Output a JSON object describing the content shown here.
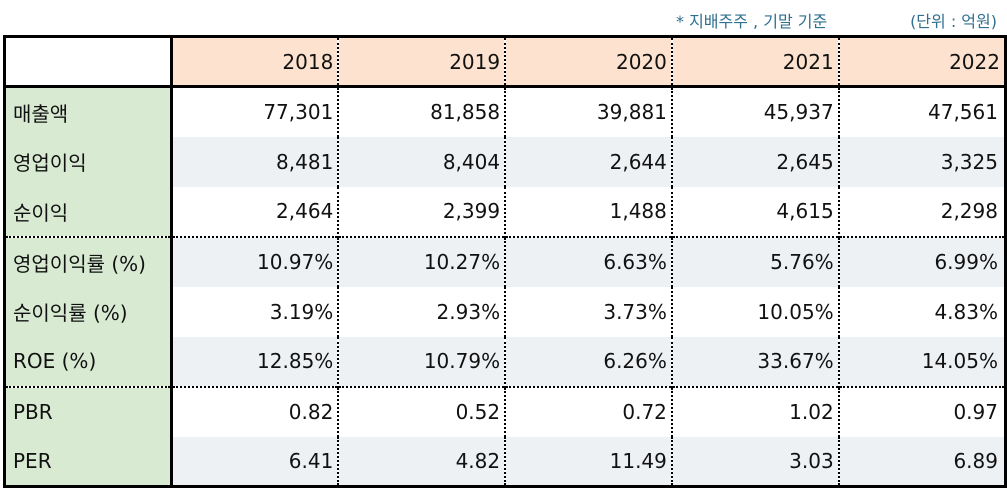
{
  "notes": {
    "basis": "* 지배주주 , 기말 기준",
    "unit": "(단위 : 억원)"
  },
  "table": {
    "years": [
      "2018",
      "2019",
      "2020",
      "2021",
      "2022"
    ],
    "rows": [
      {
        "label": "매출액",
        "values": [
          "77,301",
          "81,858",
          "39,881",
          "45,937",
          "47,561"
        ]
      },
      {
        "label": "영업이익",
        "values": [
          "8,481",
          "8,404",
          "2,644",
          "2,645",
          "3,325"
        ]
      },
      {
        "label": "순이익",
        "values": [
          "2,464",
          "2,399",
          "1,488",
          "4,615",
          "2,298"
        ]
      },
      {
        "label": "영업이익률 (%)",
        "values": [
          "10.97%",
          "10.27%",
          "6.63%",
          "5.76%",
          "6.99%"
        ]
      },
      {
        "label": "순이익률 (%)",
        "values": [
          "3.19%",
          "2.93%",
          "3.73%",
          "10.05%",
          "4.83%"
        ]
      },
      {
        "label": "ROE (%)",
        "values": [
          "12.85%",
          "10.79%",
          "6.26%",
          "33.67%",
          "14.05%"
        ]
      },
      {
        "label": "PBR",
        "values": [
          "0.82",
          "0.52",
          "0.72",
          "1.02",
          "0.97"
        ]
      },
      {
        "label": "PER",
        "values": [
          "6.41",
          "4.82",
          "11.49",
          "3.03",
          "6.89"
        ]
      }
    ]
  },
  "colors": {
    "header_fill": "#fde3cf",
    "label_fill": "#d9ead3",
    "alt_row_fill": "#eef1f4",
    "note_text": "#2f6f8f"
  }
}
